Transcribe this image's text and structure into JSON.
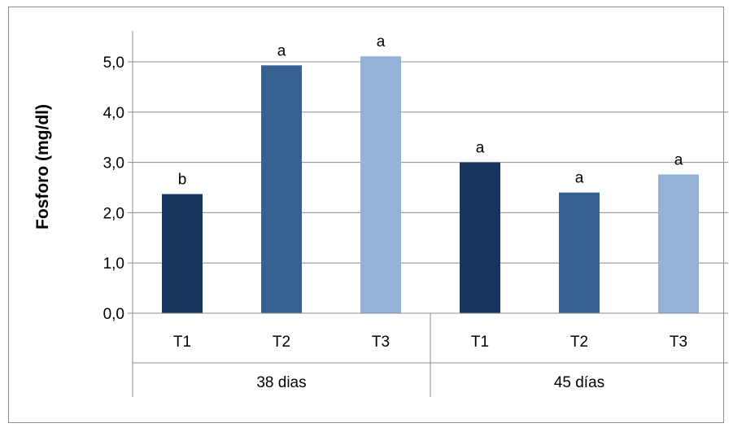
{
  "chart_data": {
    "type": "bar",
    "title": "",
    "xlabel": "",
    "ylabel": "Fosforo (mg/dl)",
    "ylim": [
      0,
      5.5
    ],
    "y_ticks": [
      "0,0",
      "1,0",
      "2,0",
      "3,0",
      "4,0",
      "5,0"
    ],
    "y_tick_values": [
      0,
      1,
      2,
      3,
      4,
      5
    ],
    "grid": true,
    "legend": "none",
    "groups": [
      {
        "name": "38 dias",
        "bars": [
          {
            "category": "T1",
            "value": 2.37,
            "label": "b",
            "color": "#17375e"
          },
          {
            "category": "T2",
            "value": 4.93,
            "label": "a",
            "color": "#366092"
          },
          {
            "category": "T3",
            "value": 5.11,
            "label": "a",
            "color": "#95b3d7"
          }
        ]
      },
      {
        "name": "45 días",
        "bars": [
          {
            "category": "T1",
            "value": 3.0,
            "label": "a",
            "color": "#17375e"
          },
          {
            "category": "T2",
            "value": 2.4,
            "label": "a",
            "color": "#366092"
          },
          {
            "category": "T3",
            "value": 2.76,
            "label": "a",
            "color": "#95b3d7"
          }
        ]
      }
    ]
  }
}
